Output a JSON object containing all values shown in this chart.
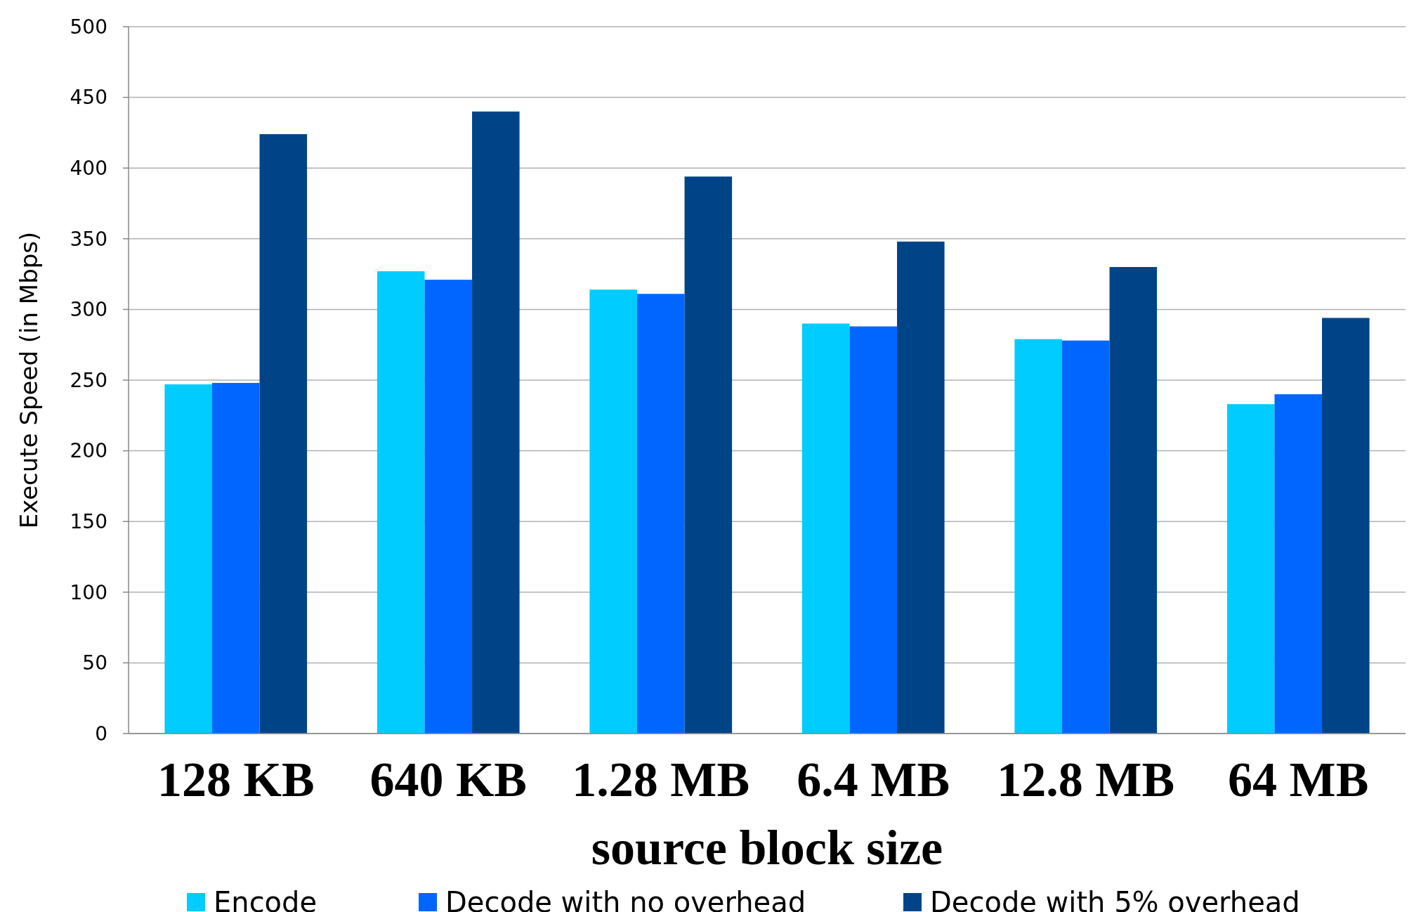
{
  "chart_data": {
    "type": "bar",
    "xlabel": "source block size",
    "ylabel": "Execute Speed (in Mbps)",
    "categories": [
      "128 KB",
      "640 KB",
      "1.28 MB",
      "6.4 MB",
      "12.8 MB",
      "64 MB"
    ],
    "series": [
      {
        "name": "Encode",
        "color": "#00ccff",
        "values": [
          247,
          327,
          314,
          290,
          279,
          233
        ]
      },
      {
        "name": "Decode with no overhead",
        "color": "#0066ff",
        "values": [
          248,
          321,
          311,
          288,
          278,
          240
        ]
      },
      {
        "name": "Decode with 5% overhead",
        "color": "#004488",
        "values": [
          424,
          440,
          394,
          348,
          330,
          294
        ]
      }
    ],
    "ylim": [
      0,
      500
    ],
    "yticks": [
      0,
      50,
      100,
      150,
      200,
      250,
      300,
      350,
      400,
      450,
      500
    ],
    "grid": "y",
    "legend": "bottom"
  }
}
